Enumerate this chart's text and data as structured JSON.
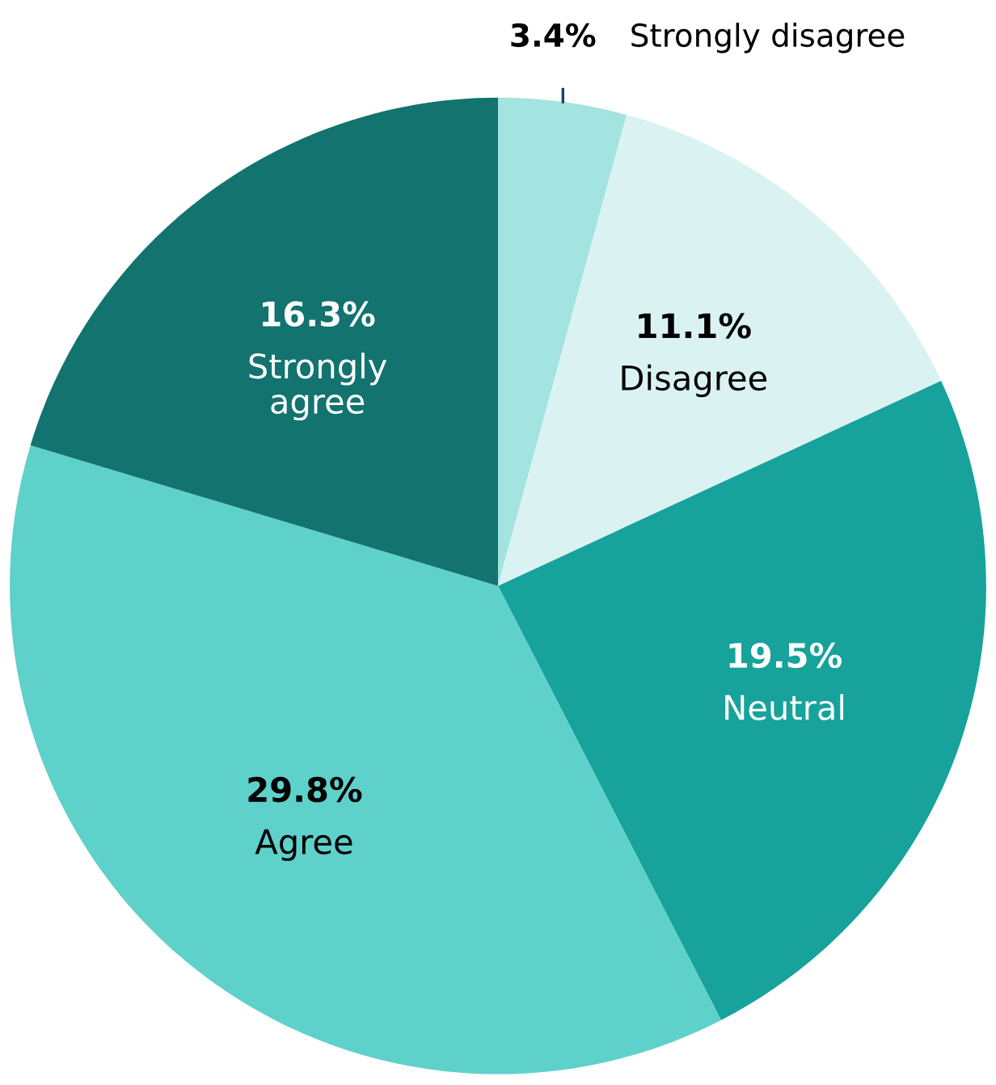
{
  "chart_data": {
    "type": "pie",
    "categories": [
      "Strongly disagree",
      "Disagree",
      "Neutral",
      "Agree",
      "Strongly agree"
    ],
    "values": [
      3.4,
      11.1,
      19.5,
      29.8,
      16.3
    ],
    "value_labels": [
      "3.4%",
      "11.1%",
      "19.5%",
      "29.8%",
      "16.3%"
    ],
    "colors": [
      "#a3e3e0",
      "#daf3f2",
      "#17a29c",
      "#5ed1cb",
      "#12736f"
    ]
  }
}
